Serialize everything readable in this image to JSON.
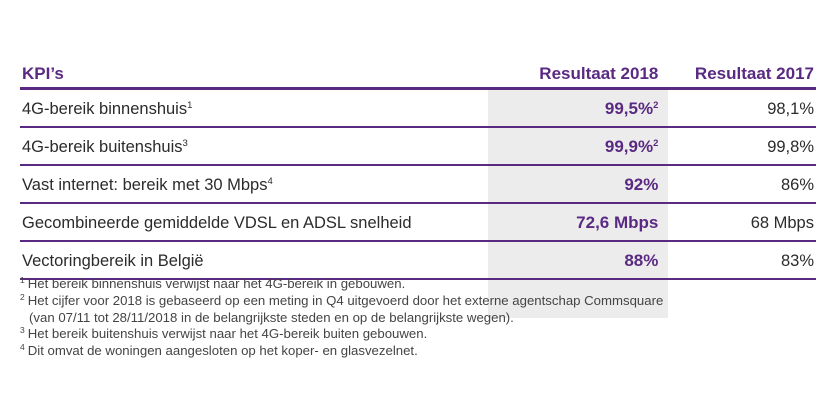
{
  "table": {
    "headers": {
      "kpi": "KPI’s",
      "result_2018": "Resultaat 2018",
      "result_2017": "Resultaat 2017"
    },
    "rows": [
      {
        "label": "4G-bereik binnenshuis",
        "label_note": "1",
        "value_2018": "99,5%",
        "value_2018_note": "2",
        "value_2017": "98,1%"
      },
      {
        "label": "4G-bereik buitenshuis",
        "label_note": "3",
        "value_2018": "99,9%",
        "value_2018_note": "2",
        "value_2017": "99,8%"
      },
      {
        "label": "Vast internet: bereik met 30 Mbps",
        "label_note": "4",
        "value_2018": "92%",
        "value_2018_note": "",
        "value_2017": "86%"
      },
      {
        "label": "Gecombineerde gemiddelde VDSL en ADSL snelheid",
        "label_note": "",
        "value_2018": "72,6 Mbps",
        "value_2018_note": "",
        "value_2017": "68 Mbps"
      },
      {
        "label": "Vectoringbereik in België",
        "label_note": "",
        "value_2018": "88%",
        "value_2018_note": "",
        "value_2017": "83%"
      }
    ]
  },
  "footnotes": [
    {
      "num": "1",
      "text": "Het bereik binnenshuis verwijst naar het 4G-bereik in gebouwen."
    },
    {
      "num": "2",
      "text": "Het cijfer voor 2018 is gebaseerd op een meting in Q4 uitgevoerd door het externe agentschap Commsquare"
    },
    {
      "num": "",
      "text": "(van 07/11 tot 28/11/2018 in de belangrijkste steden en op de belangrijkste wegen)."
    },
    {
      "num": "3",
      "text": "Het bereik buitenshuis verwijst naar het 4G-bereik buiten gebouwen."
    },
    {
      "num": "4",
      "text": "Dit omvat de woningen aangesloten op het koper- en glasvezelnet."
    }
  ],
  "colors": {
    "accent": "#5a2a82",
    "highlight": "#ececec",
    "text": "#2b2b2b"
  }
}
